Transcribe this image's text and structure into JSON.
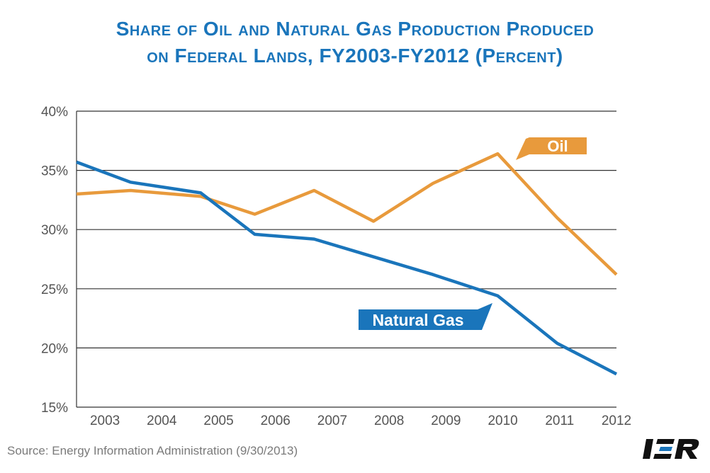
{
  "title_line1": "Share of Oil and Natural Gas Production Produced",
  "title_line2": "on Federal Lands, FY2003-FY2012 (Percent)",
  "source": "Source: Energy Information Administration (9/30/2013)",
  "logo_text": "IER",
  "colors": {
    "oil": "#e89a3c",
    "gas": "#1a75bb",
    "grid": "#333333",
    "tick": "#555555"
  },
  "chart_data": {
    "type": "line",
    "title": "Share of Oil and Natural Gas Production Produced on Federal Lands, FY2003-FY2012 (Percent)",
    "x_tick_labels": [
      "2003",
      "2004",
      "2005",
      "2006",
      "2007",
      "2008",
      "2009",
      "2010",
      "2011",
      "2012"
    ],
    "y_tick_labels": [
      "15%",
      "20%",
      "25%",
      "30%",
      "35%",
      "40%"
    ],
    "y_ticks": [
      15,
      20,
      25,
      30,
      35,
      40
    ],
    "xlim": [
      2002,
      2012
    ],
    "ylim": [
      15,
      40
    ],
    "grid": "horizontal",
    "series": [
      {
        "name": "Oil",
        "color": "#e89a3c",
        "points": [
          [
            2002,
            33.0
          ],
          [
            2003,
            33.3
          ],
          [
            2004.3,
            32.8
          ],
          [
            2005.3,
            31.3
          ],
          [
            2006.4,
            33.3
          ],
          [
            2007.5,
            30.7
          ],
          [
            2008.6,
            33.9
          ],
          [
            2009.8,
            36.4
          ],
          [
            2010.9,
            31.0
          ],
          [
            2012,
            26.2
          ]
        ]
      },
      {
        "name": "Natural Gas",
        "color": "#1a75bb",
        "points": [
          [
            2002,
            35.7
          ],
          [
            2003,
            34.0
          ],
          [
            2004.3,
            33.1
          ],
          [
            2005.3,
            29.6
          ],
          [
            2006.4,
            29.2
          ],
          [
            2007.5,
            27.7
          ],
          [
            2008.6,
            26.2
          ],
          [
            2009.8,
            24.4
          ],
          [
            2010.9,
            20.4
          ],
          [
            2012,
            17.8
          ]
        ]
      }
    ]
  }
}
